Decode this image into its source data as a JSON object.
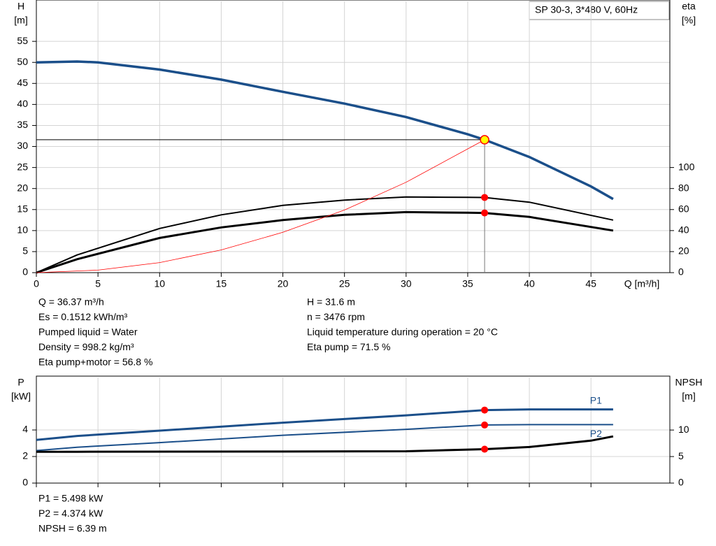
{
  "chart_data": [
    {
      "type": "line",
      "title": "SP 30-3, 3*480 V, 60Hz",
      "xlabel": "Q [m³/h]",
      "ylabel": "H",
      "yunit": "[m]",
      "y2label": "eta",
      "y2unit": "[%]",
      "xlim": [
        0,
        51.4
      ],
      "xticks": [
        0,
        5,
        10,
        15,
        20,
        25,
        30,
        35,
        40,
        45
      ],
      "ylim": [
        0,
        64.5
      ],
      "yticks": [
        0,
        5,
        10,
        15,
        20,
        25,
        30,
        35,
        40,
        45,
        50,
        55
      ],
      "y2lim": [
        0,
        258
      ],
      "y2ticks": [
        0,
        20,
        40,
        60,
        80,
        100
      ],
      "grid": true,
      "series": [
        {
          "color": "#1b4f8a",
          "x": [
            0,
            3.3,
            5,
            10,
            15,
            20,
            25,
            30,
            35,
            36.37,
            40,
            45,
            46.8
          ],
          "values": [
            50,
            50.2,
            50,
            48.3,
            45.9,
            43,
            40.2,
            37,
            32.9,
            31.6,
            27.5,
            20.5,
            17.5
          ]
        },
        {
          "color": "#000000",
          "axis": "y2",
          "x": [
            0,
            3.3,
            10,
            15,
            20,
            25,
            30,
            35,
            36.37,
            40,
            46.8
          ],
          "values": [
            0,
            16.8,
            42,
            55,
            64,
            69,
            72,
            71.6,
            71.5,
            67,
            50
          ]
        },
        {
          "color": "#000000",
          "axis": "y2",
          "x": [
            0,
            3.3,
            10,
            15,
            20,
            25,
            30,
            35,
            36.37,
            40,
            46.8
          ],
          "values": [
            0,
            12.8,
            33,
            43,
            50,
            55,
            57.6,
            57,
            56.8,
            53,
            40
          ]
        },
        {
          "color": "#ff0000",
          "x": [
            0,
            5,
            10,
            15,
            20,
            25,
            30,
            36.37
          ],
          "values": [
            0,
            0.6,
            2.4,
            5.4,
            9.6,
            14.9,
            21.5,
            31.6
          ]
        }
      ],
      "points": [
        {
          "color": "#ffff00",
          "x": [
            36.37
          ],
          "values": [
            31.6
          ]
        },
        {
          "color": "#ff0000",
          "axis": "y2",
          "x": [
            36.37
          ],
          "values": [
            71.5
          ]
        },
        {
          "color": "#ff0000",
          "axis": "y2",
          "x": [
            36.37
          ],
          "values": [
            56.8
          ]
        }
      ],
      "info_left": [
        "Q = 36.37 m³/h",
        "Es = 0.1512 kWh/m³",
        "Pumped liquid = Water",
        "Density = 998.2 kg/m³",
        "Eta pump+motor = 56.8 %"
      ],
      "info_right": [
        "H = 31.6 m",
        "n = 3476 rpm",
        "Liquid temperature during operation = 20 °C",
        "Eta pump = 71.5 %"
      ]
    },
    {
      "type": "line",
      "ylabel": "P",
      "yunit": "[kW]",
      "y2label": "NPSH",
      "y2unit": "[m]",
      "xlim": [
        0,
        51.4
      ],
      "xticks": [
        0,
        5,
        10,
        15,
        20,
        25,
        30,
        35,
        40,
        45
      ],
      "ylim": [
        0,
        7.95
      ],
      "yticks": [
        0,
        2,
        4
      ],
      "y2lim": [
        0,
        19.9
      ],
      "y2ticks": [
        0,
        5,
        10
      ],
      "grid": true,
      "series": [
        {
          "name": "P1",
          "color": "#1b4f8a",
          "x": [
            0,
            3.3,
            10,
            20,
            30,
            36.37,
            40,
            46.8
          ],
          "values": [
            3.25,
            3.55,
            3.95,
            4.55,
            5.1,
            5.498,
            5.55,
            5.55
          ]
        },
        {
          "name": "P2",
          "color": "#1b4f8a",
          "x": [
            0,
            3.3,
            10,
            20,
            30,
            36.37,
            40,
            46.8
          ],
          "values": [
            2.45,
            2.7,
            3.05,
            3.6,
            4.05,
            4.374,
            4.4,
            4.4
          ]
        },
        {
          "color": "#000000",
          "axis": "y2",
          "x": [
            0,
            3.3,
            20,
            30,
            36.37,
            40,
            45,
            46.8
          ],
          "values": [
            5.9,
            5.9,
            5.95,
            6.0,
            6.39,
            6.8,
            8.0,
            8.8
          ]
        }
      ],
      "points": [
        {
          "color": "#ff0000",
          "x": [
            36.37
          ],
          "values": [
            5.498
          ]
        },
        {
          "color": "#ff0000",
          "x": [
            36.37
          ],
          "values": [
            4.374
          ]
        },
        {
          "color": "#ff0000",
          "axis": "y2",
          "x": [
            36.37
          ],
          "values": [
            6.39
          ]
        }
      ],
      "info": [
        "P1 = 5.498 kW",
        "P2 = 4.374 kW",
        "NPSH = 6.39 m"
      ]
    }
  ]
}
